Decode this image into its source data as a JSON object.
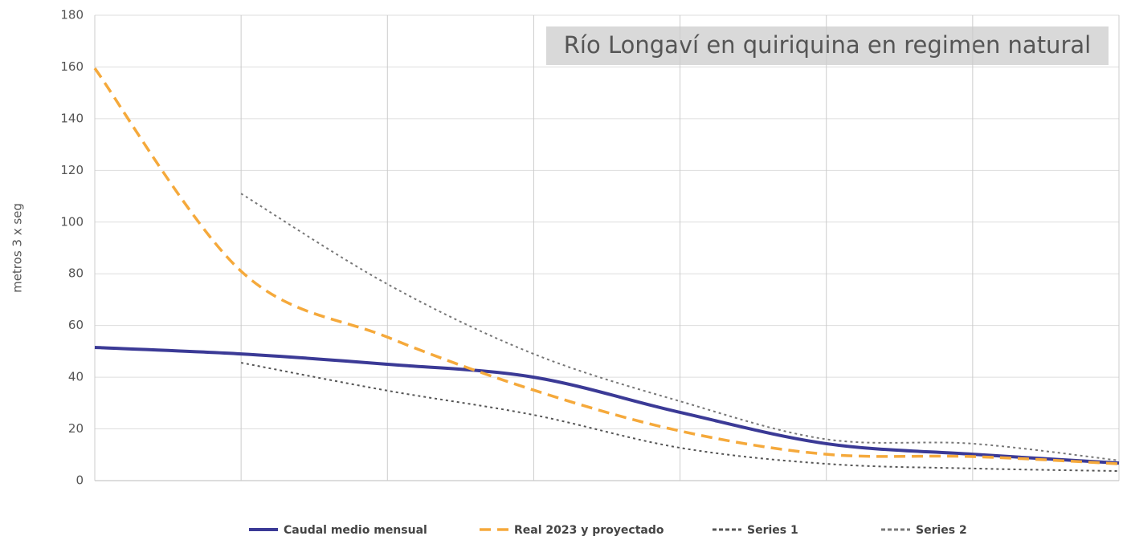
{
  "chart_data": {
    "type": "line",
    "title": "Río Longaví en quiriquina en regimen natural",
    "y_label": "metros 3 x seg",
    "x": [
      0,
      1,
      2,
      3,
      4,
      5,
      6,
      7
    ],
    "xlim": [
      0,
      7
    ],
    "xticks": [
      0,
      1,
      2,
      3,
      4,
      5,
      6,
      7
    ],
    "ylim": [
      0,
      180
    ],
    "yticks": [
      0,
      20,
      40,
      60,
      80,
      100,
      120,
      140,
      160,
      180
    ],
    "grid": true,
    "legend": "bottom",
    "series": [
      {
        "name": "Caudal medio mensual",
        "color": "#3b3a96",
        "style": "solid",
        "values": [
          51.5,
          49,
          45,
          40,
          26.4,
          14.3,
          10.2,
          6.8
        ]
      },
      {
        "name": "Real 2023 y proyectado",
        "color": "#f5a93b",
        "style": "dashed",
        "values": [
          159.5,
          81,
          55.5,
          35,
          19.2,
          10.2,
          9.3,
          6.5
        ]
      },
      {
        "name": "Series 1",
        "color": "#555555",
        "style": "dotted",
        "values": [
          null,
          45.6,
          34.8,
          25.4,
          12.7,
          6.5,
          4.7,
          3.7
        ]
      },
      {
        "name": "Series 2",
        "color": "#777777",
        "style": "dotted",
        "values": [
          null,
          111,
          76,
          49,
          30.7,
          16,
          14.3,
          7.8
        ]
      }
    ]
  }
}
